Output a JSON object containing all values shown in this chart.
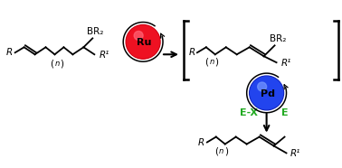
{
  "bg_color": "#ffffff",
  "black": "#000000",
  "red_ball_color": "#ee1122",
  "blue_ball_color": "#2244ee",
  "green_label": "#22aa22",
  "ru_label": "Ru",
  "pd_label": "Pd",
  "ex_label": "E-X",
  "e_label": "E",
  "br2_label": "BR₂",
  "r_label": "R",
  "r1_label": "R¹",
  "n_label": "n",
  "figsize": [
    3.78,
    1.86
  ],
  "dpi": 100,
  "lw": 1.3
}
